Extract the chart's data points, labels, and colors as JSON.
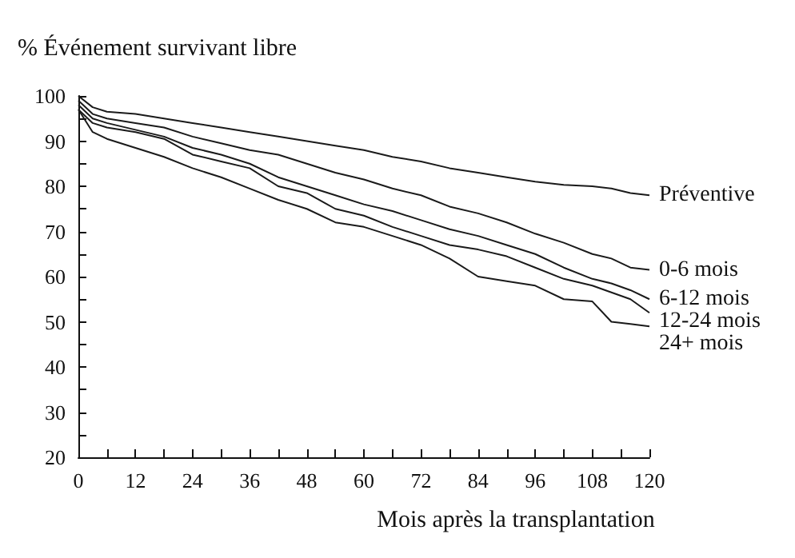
{
  "chart_data": {
    "type": "line",
    "ylabel": "% Événement survivant libre",
    "xlabel": "Mois après la transplantation",
    "x": [
      0,
      3,
      6,
      12,
      18,
      24,
      30,
      36,
      42,
      48,
      54,
      60,
      66,
      72,
      78,
      84,
      90,
      96,
      102,
      108,
      112,
      116,
      120
    ],
    "series": [
      {
        "name": "Préventive",
        "color": "#1a1a1a",
        "values": [
          100,
          97.5,
          96.5,
          96,
          95,
          94,
          93,
          92,
          91,
          90,
          89,
          88,
          86.5,
          85.5,
          84,
          83,
          82,
          81,
          80.3,
          80,
          79.5,
          78.5,
          78
        ]
      },
      {
        "name": "0-6 mois",
        "color": "#1a1a1a",
        "values": [
          99,
          96,
          95,
          94,
          93,
          91,
          89.5,
          88,
          87,
          85,
          83,
          81.5,
          79.5,
          78,
          75.5,
          74,
          72,
          69.5,
          67.5,
          65,
          64,
          62,
          61.5
        ]
      },
      {
        "name": "6-12 mois",
        "color": "#1a1a1a",
        "values": [
          98,
          95,
          94,
          92.5,
          91,
          88.5,
          87,
          85,
          82,
          80,
          78,
          76,
          74.5,
          72.5,
          70.5,
          69,
          67,
          65,
          62,
          59.5,
          58.5,
          57,
          55
        ]
      },
      {
        "name": "12-24 mois",
        "color": "#1a1a1a",
        "values": [
          97,
          94,
          93,
          92,
          90.5,
          87,
          85.5,
          84,
          80,
          78.5,
          75,
          73.5,
          71,
          69,
          67,
          66,
          64.5,
          62,
          59.5,
          58,
          56.5,
          55,
          52
        ]
      },
      {
        "name": "24+ mois",
        "color": "#1a1a1a",
        "values": [
          97,
          92,
          90.5,
          88.5,
          86.5,
          84,
          82,
          79.5,
          77,
          75,
          72,
          71,
          69,
          67,
          64,
          60,
          59,
          58,
          55,
          54.5,
          50,
          49.5,
          49
        ]
      }
    ],
    "xlim": [
      0,
      120
    ],
    "xticks": [
      0,
      {
        "value": 6,
        "label": null
      },
      12,
      {
        "value": 18,
        "label": null
      },
      24,
      {
        "value": 30,
        "label": null
      },
      36,
      {
        "value": 42,
        "label": null
      },
      48,
      {
        "value": 54,
        "label": null
      },
      60,
      {
        "value": 66,
        "label": null
      },
      72,
      {
        "value": 78,
        "label": null
      },
      84,
      {
        "value": 90,
        "label": null
      },
      96,
      {
        "value": 102,
        "label": null
      },
      108,
      {
        "value": 114,
        "label": null
      },
      120
    ],
    "ylim": [
      20,
      100
    ],
    "yticks": [
      20,
      {
        "value": 25,
        "label": null
      },
      30,
      {
        "value": 35,
        "label": null
      },
      40,
      {
        "value": 45,
        "label": null
      },
      50,
      {
        "value": 55,
        "label": null
      },
      60,
      {
        "value": 65,
        "label": null
      },
      70,
      {
        "value": 75,
        "label": null
      },
      80,
      {
        "value": 85,
        "label": null
      },
      90,
      {
        "value": 95,
        "label": null
      },
      100
    ],
    "grid": false,
    "legend": false,
    "marker": "none",
    "line_style": "solid"
  }
}
